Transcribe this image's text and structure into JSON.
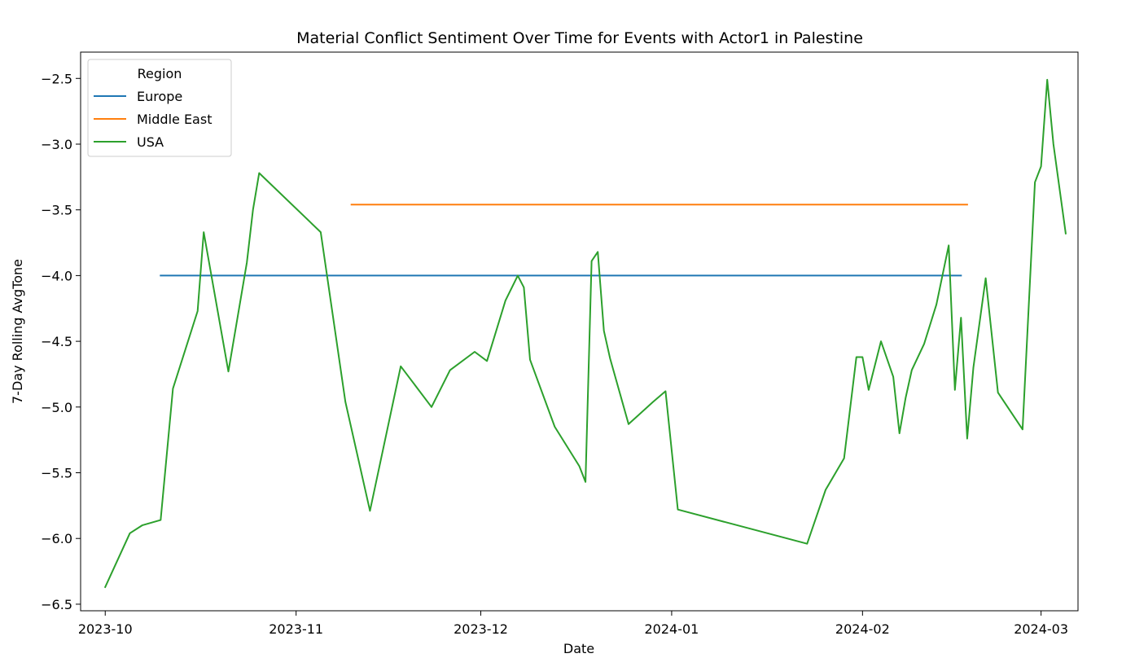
{
  "chart_data": {
    "type": "line",
    "title": "Material Conflict Sentiment Over Time for Events with Actor1 in Palestine",
    "xlabel": "Date",
    "ylabel": "7-Day Rolling AvgTone",
    "ylim": [
      -6.55,
      -2.3
    ],
    "xlim": [
      "2023-09-27",
      "2024-03-07"
    ],
    "x_ticks": [
      "2023-10-01",
      "2023-11-01",
      "2023-12-01",
      "2024-01-01",
      "2024-02-01",
      "2024-03-01"
    ],
    "x_tick_labels": [
      "2023-10",
      "2023-11",
      "2023-12",
      "2024-01",
      "2024-02",
      "2024-03"
    ],
    "y_ticks": [
      -6.5,
      -6.0,
      -5.5,
      -5.0,
      -4.5,
      -4.0,
      -3.5,
      -3.0,
      -2.5
    ],
    "y_tick_labels": [
      "−6.5",
      "−6.0",
      "−5.5",
      "−5.0",
      "−4.5",
      "−4.0",
      "−3.5",
      "−3.0",
      "−2.5"
    ],
    "legend": {
      "title": "Region",
      "position": "upper-left"
    },
    "series": [
      {
        "name": "Europe",
        "color": "#1f77b4",
        "x": [
          "2023-10-10",
          "2024-02-17"
        ],
        "y": [
          -4.0,
          -4.0
        ]
      },
      {
        "name": "Middle East",
        "color": "#ff7f0e",
        "x": [
          "2023-11-10",
          "2024-02-18"
        ],
        "y": [
          -3.46,
          -3.46
        ]
      },
      {
        "name": "USA",
        "color": "#2ca02c",
        "x": [
          "2023-10-01",
          "2023-10-05",
          "2023-10-07",
          "2023-10-10",
          "2023-10-12",
          "2023-10-16",
          "2023-10-17",
          "2023-10-21",
          "2023-10-24",
          "2023-10-25",
          "2023-10-26",
          "2023-11-05",
          "2023-11-09",
          "2023-11-13",
          "2023-11-18",
          "2023-11-23",
          "2023-11-26",
          "2023-11-30",
          "2023-12-02",
          "2023-12-05",
          "2023-12-07",
          "2023-12-08",
          "2023-12-09",
          "2023-12-13",
          "2023-12-17",
          "2023-12-18",
          "2023-12-19",
          "2023-12-20",
          "2023-12-21",
          "2023-12-22",
          "2023-12-25",
          "2023-12-29",
          "2023-12-31",
          "2024-01-02",
          "2024-01-23",
          "2024-01-26",
          "2024-01-29",
          "2024-01-31",
          "2024-02-01",
          "2024-02-02",
          "2024-02-04",
          "2024-02-06",
          "2024-02-07",
          "2024-02-08",
          "2024-02-09",
          "2024-02-11",
          "2024-02-13",
          "2024-02-15",
          "2024-02-16",
          "2024-02-17",
          "2024-02-18",
          "2024-02-19",
          "2024-02-21",
          "2024-02-23",
          "2024-02-27",
          "2024-02-29",
          "2024-03-01",
          "2024-03-02",
          "2024-03-03",
          "2024-03-05"
        ],
        "y": [
          -6.37,
          -5.96,
          -5.9,
          -5.86,
          -4.86,
          -4.27,
          -3.67,
          -4.73,
          -3.9,
          -3.5,
          -3.22,
          -3.67,
          -4.96,
          -5.79,
          -4.69,
          -5.0,
          -4.72,
          -4.58,
          -4.65,
          -4.19,
          -4.0,
          -4.09,
          -4.64,
          -5.15,
          -5.45,
          -5.57,
          -3.89,
          -3.82,
          -4.42,
          -4.63,
          -5.13,
          -4.96,
          -4.88,
          -5.78,
          -6.04,
          -5.63,
          -5.39,
          -4.62,
          -4.62,
          -4.87,
          -4.5,
          -4.77,
          -5.2,
          -4.93,
          -4.72,
          -4.52,
          -4.22,
          -3.77,
          -4.87,
          -4.32,
          -5.24,
          -4.7,
          -4.02,
          -4.89,
          -5.17,
          -3.29,
          -3.17,
          -2.51,
          -3.0,
          -3.68
        ]
      }
    ]
  }
}
